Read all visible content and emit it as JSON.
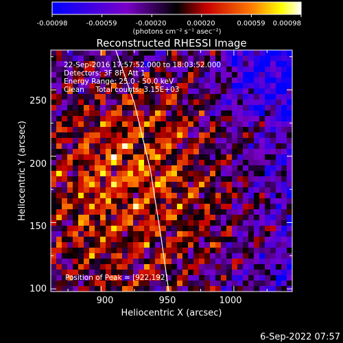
{
  "colorbar": {
    "ticks": [
      "-0.00098",
      "-0.00059",
      "-0.00020",
      "0.00020",
      "0.00059",
      "0.00098"
    ],
    "unit_label": "(photons cm⁻² s⁻¹ asec⁻²)"
  },
  "plot": {
    "title": "Reconstructed RHESSI Image",
    "info_lines": [
      "22-Sep-2016 17:57:52.000 to 18:03:52.000",
      "Detectors: 3F 8F, Att 1",
      "Energy Range: 25.0 - 50.0 keV",
      "Clean     Total counts: 3.15E+03"
    ],
    "peak_label": "Position of Peak = [922,192]",
    "footer_date": "6-Sep-2022 07:57"
  },
  "chart_data": {
    "type": "heatmap",
    "title": "Reconstructed RHESSI Image",
    "xlabel": "Heliocentric X (arcsec)",
    "ylabel": "Heliocentric Y (arcsec)",
    "xlim": [
      862,
      1044
    ],
    "ylim": [
      98,
      280
    ],
    "x_ticks": [
      900,
      950,
      1000
    ],
    "y_ticks": [
      100,
      150,
      200,
      250
    ],
    "colorbar_range": [
      -0.00098,
      0.00098
    ],
    "colormap": "blue-purple-red-yellow-white",
    "limb_curve": [
      [
        911,
        282
      ],
      [
        925,
        240
      ],
      [
        937,
        190
      ],
      [
        945,
        140
      ],
      [
        951,
        98
      ]
    ],
    "peak": [
      922,
      192
    ]
  }
}
